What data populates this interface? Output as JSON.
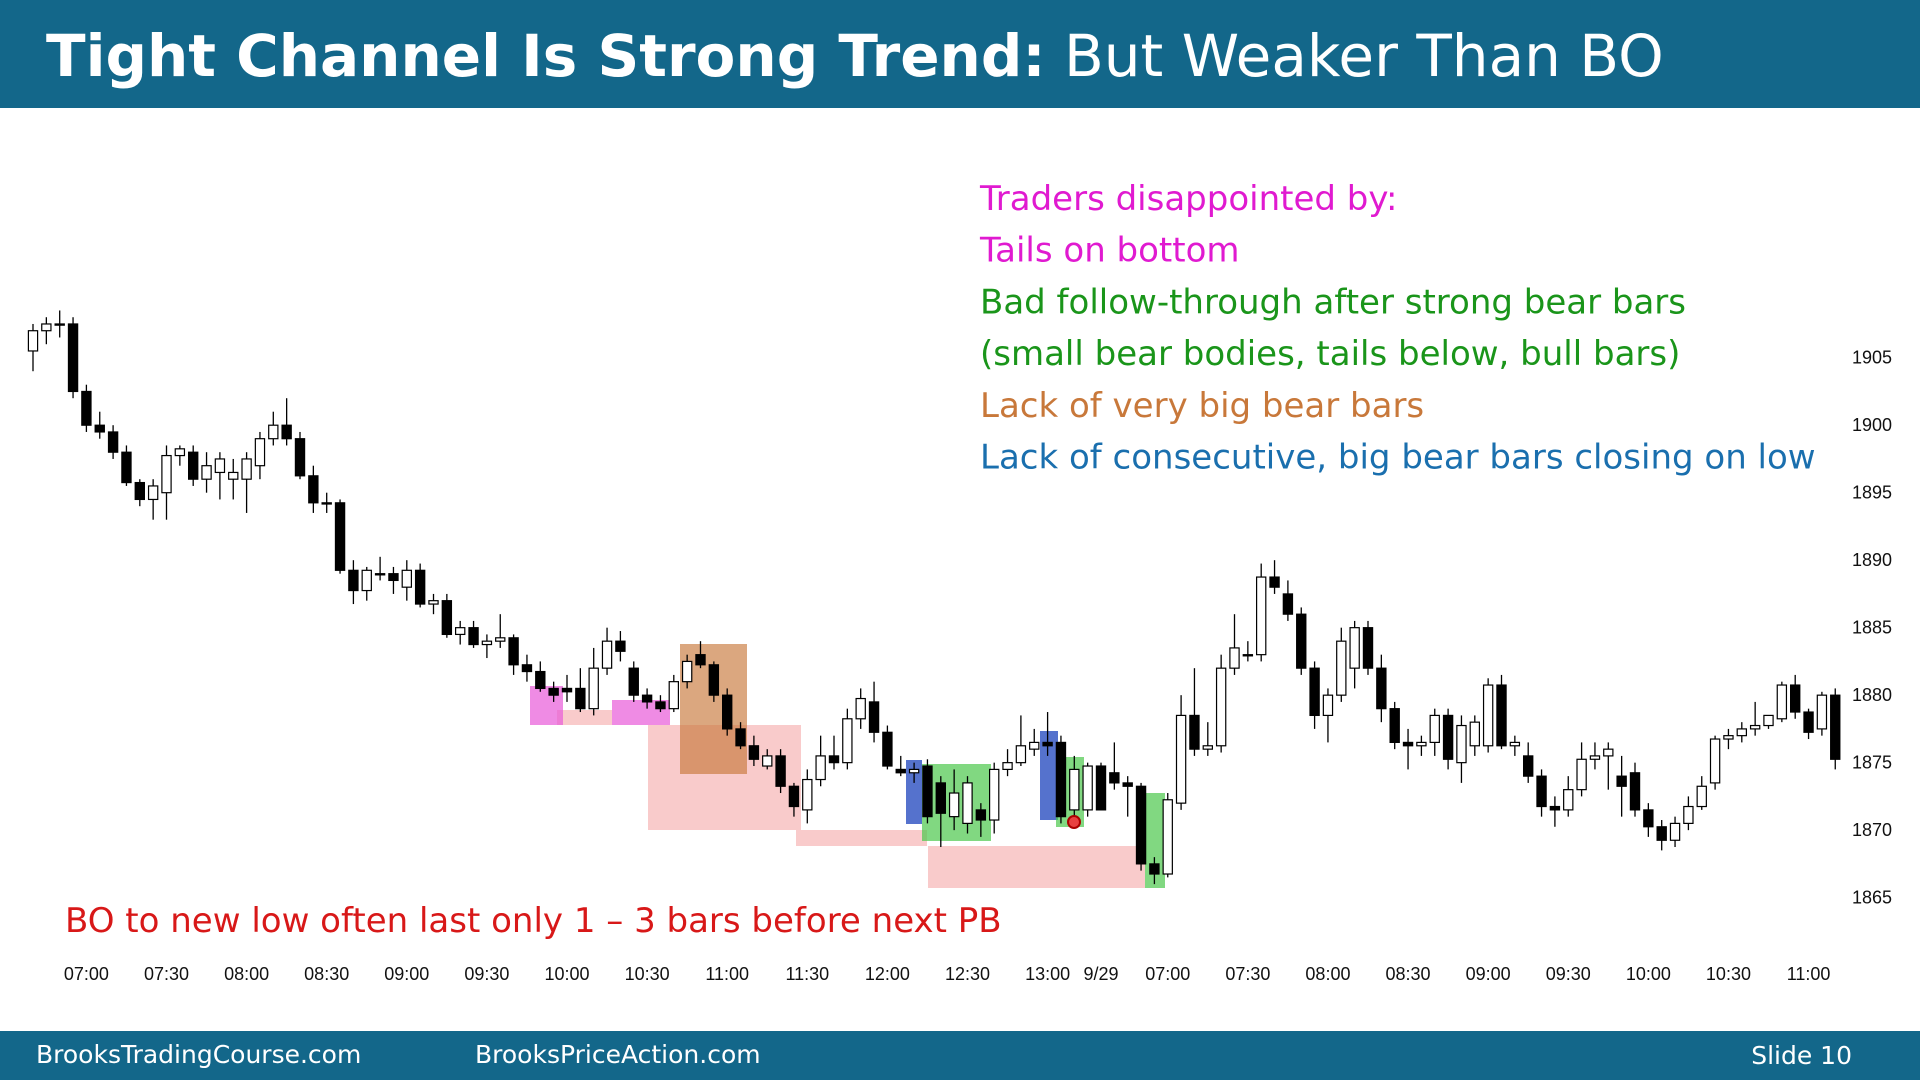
{
  "slide": {
    "title_bold": "Tight Channel Is Strong Trend:",
    "title_regular": "But Weaker Than BO",
    "footer_left": "BrooksTradingCourse.com",
    "footer_center": "BrooksPriceAction.com",
    "footer_right": "Slide 10"
  },
  "chart_data": {
    "type": "candlestick",
    "bull_color": "#ffffff",
    "bear_color": "#000000",
    "ylim": [
      1860.75,
      1923.5
    ],
    "yticks": [
      1865,
      1870,
      1875,
      1880,
      1885,
      1890,
      1895,
      1900,
      1905
    ],
    "categories": [
      null,
      null,
      null,
      null,
      "07:00",
      null,
      null,
      null,
      null,
      null,
      "07:30",
      null,
      null,
      null,
      null,
      null,
      "08:00",
      null,
      null,
      null,
      null,
      null,
      "08:30",
      null,
      null,
      null,
      null,
      null,
      "09:00",
      null,
      null,
      null,
      null,
      null,
      "09:30",
      null,
      null,
      null,
      null,
      null,
      "10:00",
      null,
      null,
      null,
      null,
      null,
      "10:30",
      null,
      null,
      null,
      null,
      null,
      "11:00",
      null,
      null,
      null,
      null,
      null,
      "11:30",
      null,
      null,
      null,
      null,
      null,
      "12:00",
      null,
      null,
      null,
      null,
      null,
      "12:30",
      null,
      null,
      null,
      null,
      null,
      "13:00",
      null,
      null,
      null,
      "9/29",
      null,
      null,
      null,
      null,
      "07:00",
      null,
      null,
      null,
      null,
      null,
      "07:30",
      null,
      null,
      null,
      null,
      null,
      "08:00",
      null,
      null,
      null,
      null,
      null,
      "08:30",
      null,
      null,
      null,
      null,
      null,
      "09:00",
      null,
      null,
      null,
      null,
      null,
      "09:30",
      null,
      null,
      null,
      null,
      null,
      "10:00",
      null,
      null,
      null,
      null,
      null,
      "10:30",
      null,
      null,
      null,
      null,
      null,
      "11:00",
      null,
      null
    ],
    "ohlc": [
      [
        1905.5,
        1907.5,
        1904,
        1907
      ],
      [
        1907,
        1908,
        1906,
        1907.5
      ],
      [
        1907.5,
        1908.5,
        1906.5,
        1907.5
      ],
      [
        1907.5,
        1908,
        1902,
        1902.5
      ],
      [
        1902.5,
        1903,
        1899.5,
        1900
      ],
      [
        1900,
        1901,
        1899,
        1899.5
      ],
      [
        1899.5,
        1900,
        1897.5,
        1898
      ],
      [
        1898,
        1898.5,
        1895.5,
        1895.75
      ],
      [
        1895.75,
        1896,
        1894,
        1894.5
      ],
      [
        1894.5,
        1896,
        1893,
        1895.5
      ],
      [
        1895,
        1898.5,
        1893,
        1897.75
      ],
      [
        1897.75,
        1898.5,
        1897,
        1898.25
      ],
      [
        1898,
        1898.5,
        1895.5,
        1896
      ],
      [
        1896,
        1898,
        1895,
        1897
      ],
      [
        1896.5,
        1898,
        1894.5,
        1897.5
      ],
      [
        1896,
        1897.5,
        1894.5,
        1896.5
      ],
      [
        1896,
        1898,
        1893.5,
        1897.5
      ],
      [
        1897,
        1899.5,
        1896,
        1899
      ],
      [
        1899,
        1901,
        1898.5,
        1900
      ],
      [
        1900,
        1902,
        1898.5,
        1899
      ],
      [
        1899,
        1899.5,
        1896,
        1896.25
      ],
      [
        1896.25,
        1897,
        1893.5,
        1894.25
      ],
      [
        1894.25,
        1895,
        1893.5,
        1894.25
      ],
      [
        1894.25,
        1894.5,
        1889,
        1889.25
      ],
      [
        1889.25,
        1890,
        1886.75,
        1887.75
      ],
      [
        1887.75,
        1889.5,
        1887,
        1889.25
      ],
      [
        1889,
        1890.25,
        1888.5,
        1889
      ],
      [
        1889,
        1889.5,
        1887.5,
        1888.5
      ],
      [
        1888,
        1890,
        1887,
        1889.25
      ],
      [
        1889.25,
        1889.75,
        1886.5,
        1886.75
      ],
      [
        1886.75,
        1887.5,
        1886,
        1887
      ],
      [
        1887,
        1887.5,
        1884.25,
        1884.5
      ],
      [
        1884.5,
        1885.5,
        1883.75,
        1885
      ],
      [
        1885,
        1885.5,
        1883.5,
        1883.75
      ],
      [
        1883.75,
        1884.5,
        1882.75,
        1884
      ],
      [
        1884,
        1886,
        1883.5,
        1884.25
      ],
      [
        1884.25,
        1884.5,
        1881.5,
        1882.25
      ],
      [
        1882.25,
        1883,
        1881,
        1881.75
      ],
      [
        1881.75,
        1882.5,
        1880.25,
        1880.5
      ],
      [
        1880.5,
        1881,
        1879.5,
        1880
      ],
      [
        1880.5,
        1881.5,
        1879.5,
        1880.25
      ],
      [
        1880.5,
        1882,
        1878.75,
        1879
      ],
      [
        1879,
        1883.5,
        1878.5,
        1882
      ],
      [
        1882,
        1885,
        1881.5,
        1884
      ],
      [
        1884,
        1884.75,
        1882.5,
        1883.25
      ],
      [
        1882,
        1882.5,
        1879.5,
        1880
      ],
      [
        1880,
        1880.5,
        1879,
        1879.5
      ],
      [
        1879.5,
        1880,
        1878.75,
        1879
      ],
      [
        1879,
        1881.5,
        1878.75,
        1881
      ],
      [
        1881,
        1883,
        1880.5,
        1882.5
      ],
      [
        1883,
        1884,
        1882,
        1882.25
      ],
      [
        1882.25,
        1882.5,
        1879.5,
        1880
      ],
      [
        1880,
        1880.5,
        1877,
        1877.5
      ],
      [
        1877.5,
        1878,
        1876,
        1876.25
      ],
      [
        1876.25,
        1877,
        1874.75,
        1875.25
      ],
      [
        1874.75,
        1876,
        1874.5,
        1875.5
      ],
      [
        1875.5,
        1876,
        1872.75,
        1873.25
      ],
      [
        1873.25,
        1873.5,
        1871,
        1871.75
      ],
      [
        1871.5,
        1874.5,
        1870.5,
        1873.75
      ],
      [
        1873.75,
        1877,
        1873.25,
        1875.5
      ],
      [
        1875.5,
        1877,
        1874.5,
        1875
      ],
      [
        1875,
        1879,
        1874.5,
        1878.25
      ],
      [
        1878.25,
        1880.5,
        1877.5,
        1879.75
      ],
      [
        1879.5,
        1881,
        1876.5,
        1877.25
      ],
      [
        1877.25,
        1877.75,
        1874.5,
        1874.75
      ],
      [
        1874.5,
        1875.5,
        1874,
        1874.25
      ],
      [
        1874.25,
        1875,
        1873.5,
        1874.5
      ],
      [
        1874.75,
        1875.25,
        1870.5,
        1871
      ],
      [
        1873.5,
        1874,
        1868.75,
        1871.25
      ],
      [
        1871,
        1874.5,
        1870,
        1872.75
      ],
      [
        1870.5,
        1874,
        1869.75,
        1873.5
      ],
      [
        1871.5,
        1872,
        1869.5,
        1870.75
      ],
      [
        1870.75,
        1875,
        1869.75,
        1874.5
      ],
      [
        1874.5,
        1876,
        1874,
        1875
      ],
      [
        1875,
        1878.5,
        1874.75,
        1876.25
      ],
      [
        1876,
        1877.5,
        1875.5,
        1876.5
      ],
      [
        1876.5,
        1878.75,
        1875.5,
        1876.25
      ],
      [
        1876.5,
        1877,
        1870.5,
        1871
      ],
      [
        1871.5,
        1875.5,
        1870.75,
        1874.5
      ],
      [
        1871.5,
        1875,
        1871,
        1874.75
      ],
      [
        1874.75,
        1875,
        1871.5,
        1871.5
      ],
      [
        1874.25,
        1876.5,
        1873,
        1873.5
      ],
      [
        1873.5,
        1874,
        1871,
        1873.25
      ],
      [
        1873.25,
        1873.5,
        1867,
        1867.5
      ],
      [
        1867.5,
        1868,
        1866,
        1866.75
      ],
      [
        1866.75,
        1872.75,
        1866.5,
        1872.25
      ],
      [
        1872,
        1880,
        1871.5,
        1878.5
      ],
      [
        1878.5,
        1882,
        1875.5,
        1876
      ],
      [
        1876,
        1878,
        1875.5,
        1876.25
      ],
      [
        1876.25,
        1883,
        1875.75,
        1882
      ],
      [
        1882,
        1886,
        1881.5,
        1883.5
      ],
      [
        1883,
        1884,
        1882.5,
        1883
      ],
      [
        1883,
        1889.75,
        1882.5,
        1888.75
      ],
      [
        1888.75,
        1890,
        1887.5,
        1888
      ],
      [
        1887.5,
        1888.5,
        1885.5,
        1886
      ],
      [
        1886,
        1886.5,
        1881.5,
        1882
      ],
      [
        1882,
        1882.5,
        1877.5,
        1878.5
      ],
      [
        1878.5,
        1880.5,
        1876.5,
        1880
      ],
      [
        1880,
        1885,
        1879.5,
        1884
      ],
      [
        1882,
        1885.5,
        1880.5,
        1885
      ],
      [
        1885,
        1885.5,
        1881.5,
        1882
      ],
      [
        1882,
        1883,
        1878,
        1879
      ],
      [
        1879,
        1879.5,
        1876,
        1876.5
      ],
      [
        1876.5,
        1877.5,
        1874.5,
        1876.25
      ],
      [
        1876.25,
        1877,
        1875.5,
        1876.5
      ],
      [
        1876.5,
        1879,
        1875.5,
        1878.5
      ],
      [
        1878.5,
        1879,
        1874.5,
        1875.25
      ],
      [
        1875,
        1878.5,
        1873.5,
        1877.75
      ],
      [
        1876.25,
        1878.5,
        1875.5,
        1878
      ],
      [
        1876.25,
        1881.25,
        1875.75,
        1880.75
      ],
      [
        1880.75,
        1881.5,
        1876,
        1876.25
      ],
      [
        1876.25,
        1877,
        1875.5,
        1876.5
      ],
      [
        1875.5,
        1876.5,
        1873.5,
        1874
      ],
      [
        1874,
        1874.5,
        1871,
        1871.75
      ],
      [
        1871.75,
        1872.5,
        1870.25,
        1871.5
      ],
      [
        1871.5,
        1874,
        1871,
        1873
      ],
      [
        1873,
        1876.5,
        1872.5,
        1875.25
      ],
      [
        1875.25,
        1876.5,
        1874.5,
        1875.5
      ],
      [
        1875.5,
        1876.5,
        1873,
        1876
      ],
      [
        1874,
        1875.5,
        1871,
        1873.25
      ],
      [
        1874.25,
        1875,
        1871,
        1871.5
      ],
      [
        1871.5,
        1872,
        1869.5,
        1870.25
      ],
      [
        1870.25,
        1870.75,
        1868.5,
        1869.25
      ],
      [
        1869.25,
        1871,
        1868.75,
        1870.5
      ],
      [
        1870.5,
        1872.5,
        1870,
        1871.75
      ],
      [
        1871.75,
        1874,
        1871.5,
        1873.25
      ],
      [
        1873.5,
        1877,
        1873,
        1876.75
      ],
      [
        1876.75,
        1877.5,
        1876,
        1877
      ],
      [
        1877,
        1878,
        1876.5,
        1877.5
      ],
      [
        1877.5,
        1879.5,
        1877,
        1877.75
      ],
      [
        1877.75,
        1878.5,
        1877.5,
        1878.5
      ],
      [
        1878.25,
        1881,
        1878,
        1880.75
      ],
      [
        1880.75,
        1881.5,
        1878.25,
        1878.75
      ],
      [
        1878.75,
        1879,
        1876.75,
        1877.25
      ],
      [
        1877.5,
        1880.25,
        1877,
        1880
      ],
      [
        1880,
        1880.5,
        1874.5,
        1875.25
      ]
    ],
    "annotations": [
      {
        "text": "Traders disappointed by:",
        "color": "#e01ad0"
      },
      {
        "text": "Tails on bottom",
        "color": "#e01ad0"
      },
      {
        "text": "Bad follow-through after strong bear bars",
        "color": "#1a951a"
      },
      {
        "text": "(small bear bodies, tails below, bull bars)",
        "color": "#1a951a"
      },
      {
        "text": "Lack of very big bear bars",
        "color": "#c8783a"
      },
      {
        "text": "Lack of consecutive, big bear bars closing on low",
        "color": "#1a6fae"
      }
    ],
    "note": {
      "text": "BO to new low often last only 1 – 3 bars before next PB",
      "color": "#d81818"
    }
  }
}
